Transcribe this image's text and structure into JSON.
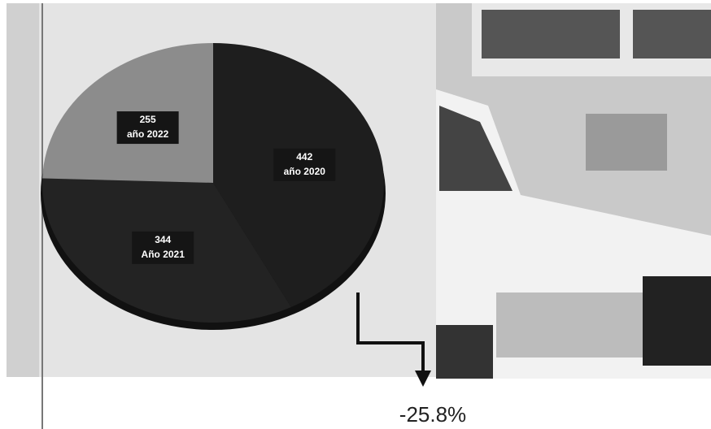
{
  "chart_data": {
    "type": "pie",
    "categories": [
      "año 2020",
      "Año 2021",
      "año 2022"
    ],
    "values": [
      442,
      344,
      255
    ],
    "colors": [
      "#1e1e1e",
      "#232323",
      "#8c8c8c"
    ],
    "annotation": "-25.8%"
  }
}
